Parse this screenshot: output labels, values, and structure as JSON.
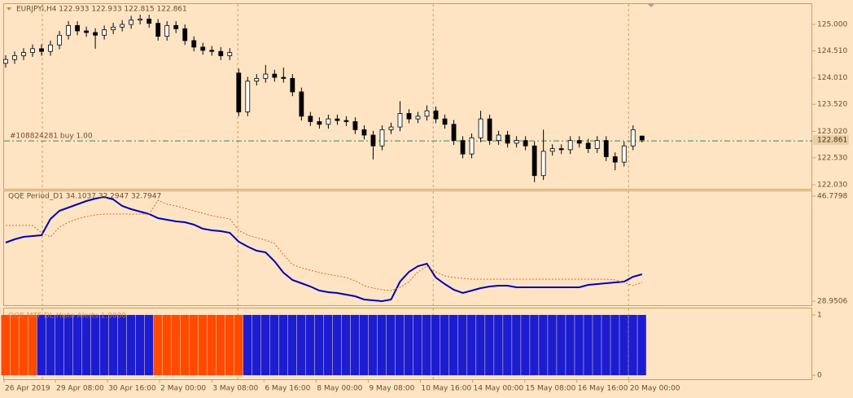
{
  "chart_data": [
    {
      "type": "candlestick",
      "title": "EURJPYi,H4  122.933 122.933 122.815 122.861",
      "open": [
        124.28,
        124.35,
        124.42,
        124.48,
        124.55,
        124.5,
        124.62,
        124.8,
        124.98,
        124.88,
        124.85,
        124.8,
        124.9,
        124.95,
        125.0,
        125.08,
        125.1,
        125.02,
        124.78,
        124.98,
        124.92,
        124.7,
        124.58,
        124.52,
        124.5,
        124.42,
        124.1,
        123.38,
        123.95,
        124.0,
        124.08,
        124.02,
        124.0,
        123.75,
        123.3,
        123.2,
        123.15,
        123.25,
        123.22,
        123.2,
        123.05,
        122.95,
        122.75,
        123.05,
        123.1,
        123.35,
        123.25,
        123.3,
        123.4,
        123.25,
        123.15,
        122.85,
        122.6,
        122.9,
        123.25,
        122.85,
        122.95,
        122.8,
        122.85,
        122.75,
        122.2,
        122.65,
        122.7,
        122.68,
        122.85,
        122.8,
        122.7,
        122.85,
        122.55,
        122.45,
        122.75,
        122.933
      ],
      "high": [
        124.43,
        124.5,
        124.56,
        124.63,
        124.63,
        124.7,
        124.88,
        125.06,
        125.06,
        124.96,
        124.93,
        124.98,
        125.03,
        125.08,
        125.16,
        125.18,
        125.18,
        125.1,
        125.06,
        125.06,
        125.0,
        124.78,
        124.66,
        124.6,
        124.58,
        124.56,
        124.18,
        124.03,
        124.08,
        124.25,
        124.16,
        124.2,
        124.08,
        123.83,
        123.38,
        123.28,
        123.33,
        123.33,
        123.3,
        123.28,
        123.13,
        123.03,
        123.13,
        123.18,
        123.58,
        123.43,
        123.38,
        123.5,
        123.48,
        123.33,
        123.23,
        122.93,
        122.98,
        123.4,
        123.33,
        123.03,
        123.03,
        122.93,
        122.93,
        122.83,
        123.05,
        122.78,
        122.78,
        122.93,
        122.93,
        122.88,
        122.93,
        122.93,
        122.63,
        122.83,
        123.13,
        122.933
      ],
      "low": [
        124.2,
        124.27,
        124.34,
        124.4,
        124.42,
        124.42,
        124.54,
        124.72,
        124.8,
        124.77,
        124.55,
        124.72,
        124.82,
        124.87,
        124.92,
        125.0,
        124.94,
        124.7,
        124.7,
        124.84,
        124.62,
        124.5,
        124.44,
        124.42,
        124.34,
        124.34,
        123.3,
        123.3,
        123.87,
        123.92,
        123.94,
        123.92,
        123.67,
        123.22,
        123.12,
        123.07,
        123.07,
        123.14,
        123.12,
        122.97,
        122.87,
        122.5,
        122.67,
        122.97,
        123.02,
        123.17,
        123.17,
        123.22,
        123.17,
        123.07,
        122.77,
        122.52,
        122.52,
        122.82,
        122.77,
        122.77,
        122.72,
        122.72,
        122.67,
        122.08,
        122.12,
        122.57,
        122.6,
        122.6,
        122.72,
        122.62,
        122.62,
        122.47,
        122.3,
        122.37,
        122.67,
        122.815
      ],
      "close": [
        124.35,
        124.42,
        124.48,
        124.55,
        124.5,
        124.62,
        124.8,
        124.98,
        124.88,
        124.85,
        124.8,
        124.9,
        124.95,
        125.0,
        125.08,
        125.1,
        125.02,
        124.78,
        124.98,
        124.92,
        124.7,
        124.58,
        124.52,
        124.5,
        124.42,
        124.48,
        123.38,
        123.95,
        124.0,
        124.08,
        124.02,
        124.0,
        123.75,
        123.3,
        123.2,
        123.15,
        123.25,
        123.22,
        123.2,
        123.05,
        122.95,
        122.75,
        123.05,
        123.1,
        123.35,
        123.25,
        123.3,
        123.4,
        123.25,
        123.15,
        122.85,
        122.6,
        122.9,
        123.25,
        122.85,
        122.95,
        122.8,
        122.85,
        122.75,
        122.2,
        122.65,
        122.7,
        122.68,
        122.85,
        122.8,
        122.7,
        122.85,
        122.55,
        122.45,
        122.75,
        123.05,
        122.861
      ],
      "up_color": "#ffffff",
      "down_color": "#000000",
      "color": "#000000",
      "xlim": [
        -0.18,
        90.0
      ],
      "ylim": [
        121.955,
        125.377
      ],
      "yticks": [
        {
          "value": 125.0,
          "label": "125.000"
        },
        {
          "value": 124.51,
          "label": "124.510"
        },
        {
          "value": 124.01,
          "label": "124.010"
        },
        {
          "value": 123.52,
          "label": "123.520"
        },
        {
          "value": 123.02,
          "label": "123.020"
        },
        {
          "value": 122.53,
          "label": "122.530"
        },
        {
          "value": 122.03,
          "label": "122.030"
        }
      ],
      "last_price": 122.861,
      "order_line": {
        "label": "#108824281 buy 1.00",
        "value": 122.843,
        "color": "#2e8b57"
      },
      "separators": [
        4.09,
        25.9,
        47.7,
        69.5
      ]
    },
    {
      "type": "line",
      "title": "QQE Period_D1 34.1037 32.2947 32.7947",
      "series": [
        {
          "color": "#0000b4",
          "values": [
            38.9,
            39.45,
            39.87,
            40.01,
            40.15,
            42.91,
            44.29,
            44.85,
            45.4,
            45.95,
            46.37,
            46.64,
            46.23,
            45.12,
            44.57,
            44.15,
            43.74,
            43.05,
            42.77,
            42.5,
            42.36,
            41.94,
            41.25,
            40.98,
            40.84,
            40.56,
            39.04,
            38.21,
            37.52,
            37.24,
            35.72,
            33.79,
            32.54,
            31.99,
            31.44,
            30.75,
            30.47,
            30.33,
            30.06,
            29.78,
            29.23,
            29.09,
            28.95,
            29.23,
            32.27,
            33.93,
            34.89,
            35.31,
            32.96,
            31.85,
            30.89,
            30.33,
            30.75,
            31.16,
            31.44,
            31.58,
            31.58,
            31.3,
            31.3,
            31.3,
            31.3,
            31.3,
            31.3,
            31.3,
            31.3,
            31.72,
            31.85,
            31.99,
            32.13,
            32.27,
            33.1,
            33.51
          ]
        },
        {
          "color": "#d2691e",
          "dash": true,
          "values": [
            41.8,
            41.8,
            41.8,
            41.8,
            40.56,
            39.87,
            41.53,
            42.36,
            42.91,
            43.32,
            43.6,
            43.74,
            43.74,
            43.74,
            43.74,
            43.74,
            43.74,
            46.09,
            45.4,
            45.12,
            44.71,
            44.29,
            43.88,
            43.46,
            43.19,
            42.91,
            40.98,
            40.15,
            39.73,
            39.32,
            38.76,
            36.83,
            35.17,
            34.62,
            34.2,
            33.79,
            33.51,
            33.24,
            32.96,
            32.41,
            31.58,
            31.16,
            30.89,
            30.75,
            31.3,
            32.27,
            33.93,
            34.89,
            33.93,
            33.24,
            32.96,
            32.82,
            32.68,
            32.68,
            32.68,
            32.68,
            32.68,
            32.68,
            32.68,
            32.68,
            32.68,
            32.68,
            32.68,
            32.68,
            32.68,
            32.68,
            32.68,
            32.68,
            32.54,
            32.13,
            31.58,
            32.13
          ]
        }
      ],
      "ylim": [
        28.26,
        47.609
      ],
      "yticks": [
        46.7798,
        28.9506
      ]
    },
    {
      "type": "bar",
      "title": "QQE MTF DL Histo Alerts 1.0000",
      "values": [
        1,
        1,
        1,
        1,
        1,
        1,
        1,
        1,
        1,
        1,
        1,
        1,
        1,
        1,
        1,
        1,
        1,
        1,
        1,
        1,
        1,
        1,
        1,
        1,
        1,
        1,
        1,
        1,
        1,
        1,
        1,
        1,
        1,
        1,
        1,
        1,
        1,
        1,
        1,
        1,
        1,
        1,
        1,
        1,
        1,
        1,
        1,
        1,
        1,
        1,
        1,
        1,
        1,
        1,
        1,
        1,
        1,
        1,
        1,
        1,
        1,
        1,
        1,
        1,
        1,
        1,
        1,
        1,
        1,
        1,
        1,
        1
      ],
      "colors": [
        "#ff4a00",
        "#ff4a00",
        "#ff4a00",
        "#ff4a00",
        "#1c1cd0",
        "#1c1cd0",
        "#1c1cd0",
        "#1c1cd0",
        "#1c1cd0",
        "#1c1cd0",
        "#1c1cd0",
        "#1c1cd0",
        "#1c1cd0",
        "#1c1cd0",
        "#1c1cd0",
        "#1c1cd0",
        "#1c1cd0",
        "#ff4a00",
        "#ff4a00",
        "#ff4a00",
        "#ff4a00",
        "#ff4a00",
        "#ff4a00",
        "#ff4a00",
        "#ff4a00",
        "#ff4a00",
        "#ff4a00",
        "#1c1cd0",
        "#1c1cd0",
        "#1c1cd0",
        "#1c1cd0",
        "#1c1cd0",
        "#1c1cd0",
        "#1c1cd0",
        "#1c1cd0",
        "#1c1cd0",
        "#1c1cd0",
        "#1c1cd0",
        "#1c1cd0",
        "#1c1cd0",
        "#1c1cd0",
        "#1c1cd0",
        "#1c1cd0",
        "#1c1cd0",
        "#1c1cd0",
        "#1c1cd0",
        "#1c1cd0",
        "#1c1cd0",
        "#1c1cd0",
        "#1c1cd0",
        "#1c1cd0",
        "#1c1cd0",
        "#1c1cd0",
        "#1c1cd0",
        "#1c1cd0",
        "#1c1cd0",
        "#1c1cd0",
        "#1c1cd0",
        "#1c1cd0",
        "#1c1cd0",
        "#1c1cd0",
        "#1c1cd0",
        "#1c1cd0",
        "#1c1cd0",
        "#1c1cd0",
        "#1c1cd0",
        "#1c1cd0",
        "#1c1cd0",
        "#1c1cd0",
        "#1c1cd0",
        "#1c1cd0",
        "#1c1cd0"
      ],
      "ylim": [
        -0.067,
        1.107
      ],
      "yticks": [
        1,
        0
      ],
      "xticks": [
        {
          "value": -0.18,
          "label": "26 Apr 2019"
        },
        {
          "value": 5.55,
          "label": "29 Apr 08:00"
        },
        {
          "value": 11.36,
          "label": "30 Apr 16:00"
        },
        {
          "value": 17.18,
          "label": "2 May 00:00"
        },
        {
          "value": 23.0,
          "label": "3 May 08:00"
        },
        {
          "value": 28.82,
          "label": "6 May 16:00"
        },
        {
          "value": 34.64,
          "label": "8 May 00:00"
        },
        {
          "value": 40.45,
          "label": "9 May 08:00"
        },
        {
          "value": 46.27,
          "label": "10 May 16:00"
        },
        {
          "value": 52.09,
          "label": "14 May 00:00"
        },
        {
          "value": 57.91,
          "label": "15 May 08:00"
        },
        {
          "value": 63.73,
          "label": "16 May 16:00"
        },
        {
          "value": 69.55,
          "label": "20 May 00:00"
        }
      ]
    }
  ]
}
